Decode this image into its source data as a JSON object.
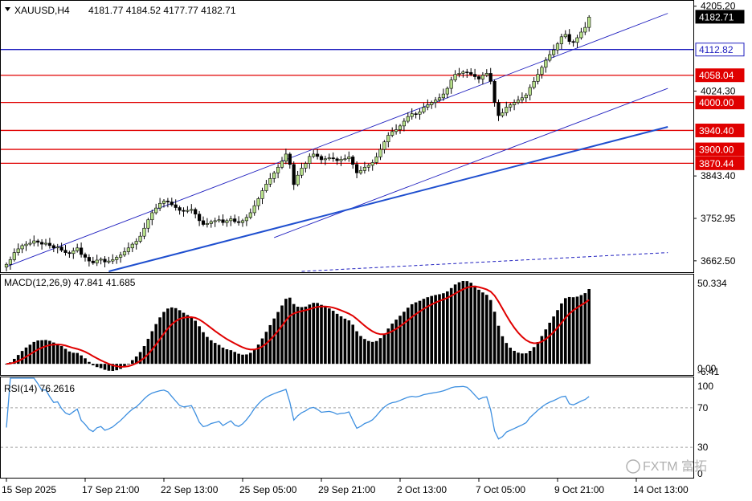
{
  "header": {
    "symbol": "XAUUSD,H4",
    "ohlc": "4181.77 4184.52 4177.77 4182.71",
    "macd_label": "MACD(12,26,9) 47.841 41.685",
    "rsi_label": "RSI(14) 76.2616"
  },
  "watermark": "FXTM 富拓",
  "colors": {
    "bull_candle": "#b7e08a",
    "bear_candle": "#000000",
    "channel_line": "#1f1fbf",
    "support_line": "#1f4fcf",
    "resistance_line": "#e00000",
    "macd_signal": "#e00000",
    "rsi_line": "#3d8fe0",
    "price_tag_red": "#e00000",
    "price_tag_blue": "#1f1fbf"
  },
  "chart_data": [
    {
      "type": "candlestick",
      "panel": "price",
      "y_axis_ticks": [
        "4205.20",
        "4024.30",
        "3843.40",
        "3752.95",
        "3662.50"
      ],
      "y_axis_tick_values": [
        4205.2,
        4024.3,
        3843.4,
        3752.95,
        3662.5
      ],
      "ylim": [
        3640,
        4215
      ],
      "x_axis_labels": [
        "15 Sep 2025",
        "17 Sep 21:00",
        "22 Sep 13:00",
        "25 Sep 05:00",
        "29 Sep 21:00",
        "2 Oct 13:00",
        "7 Oct 05:00",
        "9 Oct 21:00",
        "14 Oct 13:00"
      ],
      "x_axis_label_bars": [
        0,
        20,
        40,
        60,
        80,
        100,
        120,
        140,
        160
      ],
      "current_price": "4182.71",
      "horizontal_levels": [
        {
          "value": 4112.82,
          "label": "4112.82",
          "color": "#1f1fbf"
        },
        {
          "value": 4058.04,
          "label": "4058.04",
          "color": "#e00000"
        },
        {
          "value": 4000.0,
          "label": "4000.00",
          "color": "#e00000"
        },
        {
          "value": 3940.4,
          "label": "3940.40",
          "color": "#e00000"
        },
        {
          "value": 3900.0,
          "label": "3900.00",
          "color": "#e00000"
        },
        {
          "value": 3870.44,
          "label": "3870.44",
          "color": "#e00000"
        }
      ],
      "trendlines": [
        {
          "name": "channel-upper",
          "from": [
            0,
            3650
          ],
          "to": [
            168,
            4190
          ],
          "style": "thin"
        },
        {
          "name": "channel-lower",
          "from": [
            68,
            3712
          ],
          "to": [
            168,
            4030
          ],
          "style": "thin"
        },
        {
          "name": "main-support",
          "from": [
            26,
            3640
          ],
          "to": [
            168,
            3948
          ],
          "style": "thick"
        },
        {
          "name": "lower-dashed",
          "from": [
            75,
            3640
          ],
          "to": [
            168,
            3680
          ],
          "style": "dashed"
        }
      ],
      "closes": [
        3655,
        3665,
        3680,
        3688,
        3695,
        3698,
        3700,
        3705,
        3702,
        3698,
        3700,
        3695,
        3690,
        3692,
        3685,
        3680,
        3678,
        3684,
        3690,
        3676,
        3670,
        3662,
        3658,
        3664,
        3666,
        3660,
        3662,
        3665,
        3670,
        3675,
        3682,
        3690,
        3698,
        3704,
        3715,
        3732,
        3750,
        3765,
        3775,
        3785,
        3790,
        3788,
        3782,
        3776,
        3770,
        3768,
        3770,
        3772,
        3762,
        3748,
        3740,
        3742,
        3746,
        3748,
        3750,
        3744,
        3748,
        3752,
        3746,
        3744,
        3748,
        3755,
        3765,
        3780,
        3795,
        3812,
        3826,
        3838,
        3850,
        3862,
        3875,
        3890,
        3868,
        3825,
        3845,
        3860,
        3870,
        3885,
        3890,
        3885,
        3878,
        3880,
        3882,
        3880,
        3876,
        3879,
        3880,
        3884,
        3868,
        3850,
        3855,
        3862,
        3866,
        3872,
        3884,
        3900,
        3916,
        3930,
        3938,
        3942,
        3950,
        3960,
        3970,
        3976,
        3975,
        3980,
        3990,
        3995,
        4000,
        4005,
        4010,
        4018,
        4030,
        4048,
        4060,
        4062,
        4065,
        4064,
        4060,
        4055,
        4050,
        4058,
        4062,
        4045,
        4000,
        3972,
        3978,
        3990,
        3995,
        4000,
        4005,
        4010,
        4016,
        4032,
        4045,
        4060,
        4075,
        4090,
        4102,
        4112,
        4125,
        4140,
        4145,
        4130,
        4128,
        4138,
        4150,
        4160,
        4182
      ],
      "rsi_ticks": [
        "100",
        "70",
        "30",
        "0"
      ],
      "rsi_tick_values": [
        100,
        70,
        30,
        0
      ],
      "rsi_levels": [
        70,
        30
      ],
      "macd_ticks": [
        "50.334",
        "0.00",
        "-6.41"
      ],
      "macd_tick_values": [
        50.334,
        0,
        -6.41
      ]
    }
  ]
}
